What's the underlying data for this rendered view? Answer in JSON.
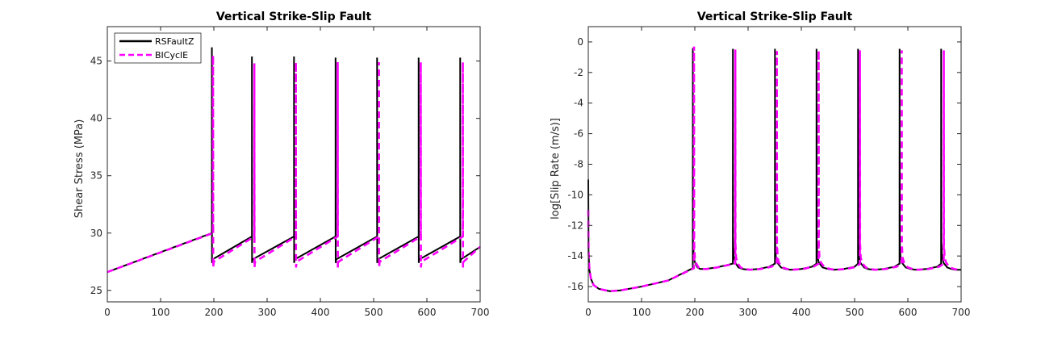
{
  "chart_data": [
    {
      "type": "line",
      "title": "Vertical Strike-Slip Fault",
      "xlabel": "",
      "ylabel": "Shear Stress (MPa)",
      "xlim": [
        0,
        700
      ],
      "ylim": [
        24,
        48
      ],
      "xticks": [
        "0",
        "100",
        "200",
        "300",
        "400",
        "500",
        "600",
        "700"
      ],
      "yticks": [
        "25",
        "30",
        "35",
        "40",
        "45"
      ],
      "legend": {
        "placement": "top-left",
        "entries": [
          "RSFaultZ",
          "BICyclE"
        ]
      },
      "series": [
        {
          "name": "RSFaultZ",
          "color": "#000000",
          "dash": "solid",
          "x": [
            0,
            196.3,
            196.3,
            196.5,
            197.5,
            271.5,
            271.5,
            271.7,
            272.7,
            350.5,
            350.5,
            350.7,
            351.7,
            428.5,
            428.5,
            428.7,
            429.7,
            506.5,
            506.5,
            506.7,
            507.7,
            584.5,
            584.5,
            584.7,
            585.7,
            662.5,
            662.5,
            662.7,
            663.7,
            700
          ],
          "y": [
            26.6,
            30.0,
            46.2,
            27.4,
            27.7,
            29.7,
            45.4,
            27.4,
            27.7,
            29.7,
            45.4,
            27.4,
            27.7,
            29.7,
            45.3,
            27.4,
            27.7,
            29.7,
            45.3,
            27.4,
            27.7,
            29.7,
            45.3,
            27.4,
            27.7,
            29.7,
            45.3,
            27.4,
            27.7,
            28.8
          ]
        },
        {
          "name": "BICyclE",
          "color": "#ff00ff",
          "dash": "dashed",
          "x": [
            0,
            198.5,
            198.5,
            198.8,
            199.8,
            276.0,
            276.0,
            276.3,
            277.3,
            354.0,
            354.0,
            354.3,
            355.3,
            432.5,
            432.5,
            432.8,
            433.8,
            510.0,
            510.0,
            510.3,
            511.3,
            588.5,
            588.5,
            588.8,
            589.8,
            667.5,
            667.5,
            667.8,
            668.8,
            700
          ],
          "y": [
            26.6,
            30.0,
            45.5,
            27.0,
            27.5,
            29.7,
            44.8,
            27.0,
            27.5,
            29.7,
            44.9,
            27.0,
            27.5,
            29.7,
            44.9,
            27.0,
            27.5,
            29.7,
            44.9,
            27.0,
            27.5,
            29.7,
            44.9,
            27.0,
            27.5,
            29.7,
            44.9,
            27.0,
            27.5,
            28.8
          ]
        }
      ]
    },
    {
      "type": "line",
      "title": "Vertical Strike-Slip Fault",
      "xlabel": "",
      "ylabel": "log[Slip Rate (m/s)]",
      "xlim": [
        0,
        700
      ],
      "ylim": [
        -17,
        1
      ],
      "xticks": [
        "0",
        "100",
        "200",
        "300",
        "400",
        "500",
        "600",
        "700"
      ],
      "yticks": [
        "0",
        "-2",
        "-4",
        "-6",
        "-8",
        "-10",
        "-12",
        "-14",
        "-16"
      ],
      "series": [
        {
          "name": "RSFaultZ",
          "color": "#000000",
          "dash": "solid",
          "x": [
            0,
            0.5,
            2,
            5,
            10,
            20,
            40,
            60,
            100,
            150,
            196.2,
            196.3,
            196.6,
            198,
            200,
            205,
            210,
            220,
            240,
            260,
            271.4,
            271.5,
            271.8,
            273,
            276,
            282,
            290,
            300,
            320,
            340,
            350.4,
            350.5,
            350.8,
            352,
            355,
            362,
            370,
            380,
            400,
            420,
            428.4,
            428.5,
            428.8,
            430,
            433,
            440,
            450,
            460,
            480,
            500,
            506.4,
            506.5,
            506.8,
            508,
            511,
            518,
            525,
            535,
            555,
            575,
            584.4,
            584.5,
            584.8,
            586,
            589,
            596,
            605,
            615,
            635,
            655,
            662.4,
            662.5,
            662.8,
            664,
            667,
            674,
            682,
            690,
            700
          ],
          "y": [
            -9.0,
            -13.8,
            -14.9,
            -15.5,
            -15.9,
            -16.15,
            -16.3,
            -16.25,
            -16.0,
            -15.6,
            -14.8,
            -0.4,
            -13.0,
            -14.0,
            -14.4,
            -14.75,
            -14.85,
            -14.85,
            -14.75,
            -14.6,
            -14.5,
            -0.45,
            -13.0,
            -14.0,
            -14.45,
            -14.75,
            -14.85,
            -14.9,
            -14.85,
            -14.7,
            -14.5,
            -0.45,
            -13.0,
            -14.0,
            -14.45,
            -14.75,
            -14.85,
            -14.9,
            -14.85,
            -14.7,
            -14.5,
            -0.45,
            -13.0,
            -14.0,
            -14.45,
            -14.75,
            -14.85,
            -14.9,
            -14.85,
            -14.7,
            -14.5,
            -0.45,
            -13.0,
            -14.0,
            -14.45,
            -14.75,
            -14.85,
            -14.9,
            -14.85,
            -14.7,
            -14.5,
            -0.45,
            -13.0,
            -14.0,
            -14.45,
            -14.75,
            -14.85,
            -14.9,
            -14.85,
            -14.7,
            -14.5,
            -0.45,
            -13.0,
            -14.0,
            -14.45,
            -14.75,
            -14.85,
            -14.9,
            -14.9
          ]
        },
        {
          "name": "BICyclE",
          "color": "#ff00ff",
          "dash": "dashed",
          "x": [
            0,
            0.5,
            2,
            5,
            10,
            20,
            40,
            60,
            100,
            150,
            198.4,
            198.5,
            198.8,
            200,
            202,
            207,
            212,
            222,
            242,
            262,
            275.9,
            276.0,
            276.3,
            277.5,
            280,
            286,
            294,
            304,
            324,
            344,
            353.9,
            354.0,
            354.3,
            355.5,
            358,
            365,
            373,
            383,
            403,
            423,
            432.4,
            432.5,
            432.8,
            434,
            437,
            444,
            454,
            464,
            484,
            504,
            509.9,
            510.0,
            510.3,
            511.5,
            514,
            521,
            529,
            539,
            559,
            579,
            588.4,
            588.5,
            588.8,
            590,
            593,
            600,
            609,
            619,
            639,
            659,
            667.4,
            667.5,
            667.8,
            669,
            672,
            679,
            687,
            695,
            700
          ],
          "y": [
            -11.0,
            -13.6,
            -14.8,
            -15.5,
            -15.9,
            -16.15,
            -16.3,
            -16.25,
            -16.0,
            -15.6,
            -14.8,
            -0.3,
            -13.2,
            -14.1,
            -14.45,
            -14.75,
            -14.85,
            -14.85,
            -14.75,
            -14.6,
            -14.5,
            -0.5,
            -13.2,
            -14.1,
            -14.45,
            -14.75,
            -14.85,
            -14.9,
            -14.85,
            -14.7,
            -14.5,
            -0.6,
            -13.2,
            -14.1,
            -14.45,
            -14.75,
            -14.85,
            -14.9,
            -14.85,
            -14.7,
            -14.5,
            -0.55,
            -13.2,
            -14.1,
            -14.45,
            -14.75,
            -14.85,
            -14.9,
            -14.85,
            -14.7,
            -14.5,
            -0.55,
            -13.2,
            -14.1,
            -14.45,
            -14.75,
            -14.85,
            -14.9,
            -14.85,
            -14.7,
            -14.5,
            -0.55,
            -13.2,
            -14.1,
            -14.45,
            -14.75,
            -14.85,
            -14.9,
            -14.85,
            -14.7,
            -14.5,
            -0.55,
            -13.2,
            -14.1,
            -14.45,
            -14.75,
            -14.85,
            -14.9,
            -14.9
          ]
        }
      ]
    }
  ]
}
